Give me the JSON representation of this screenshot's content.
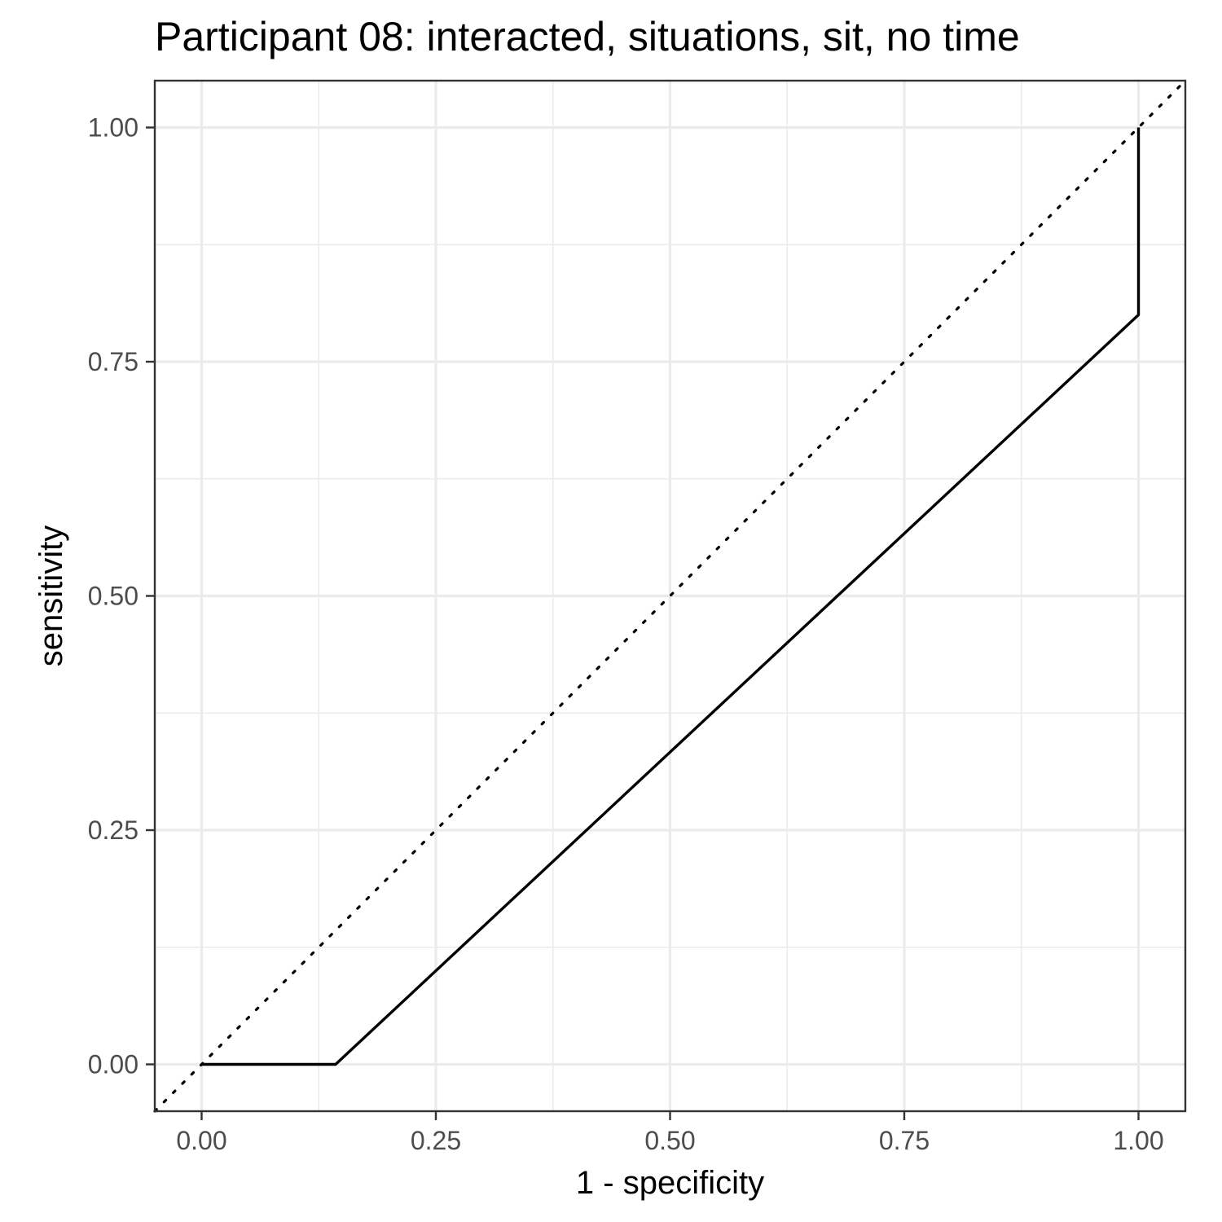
{
  "chart_data": {
    "type": "line",
    "title": "Participant 08: interacted, situations, sit, no time",
    "xlabel": "1 - specificity",
    "ylabel": "sensitivity",
    "xlim": [
      -0.05,
      1.05
    ],
    "ylim": [
      -0.05,
      1.05
    ],
    "x_ticks": [
      0,
      0.25,
      0.5,
      0.75,
      1
    ],
    "x_tick_labels": [
      "0.00",
      "0.25",
      "0.50",
      "0.75",
      "1.00"
    ],
    "y_ticks": [
      0,
      0.25,
      0.5,
      0.75,
      1
    ],
    "y_tick_labels": [
      "0.00",
      "0.25",
      "0.50",
      "0.75",
      "1.00"
    ],
    "grid": true,
    "series": [
      {
        "style": "solid",
        "color": "#000000",
        "points": [
          [
            0,
            0
          ],
          [
            0.143,
            0
          ],
          [
            1,
            0.8
          ],
          [
            1,
            1
          ]
        ]
      }
    ],
    "reference_line": {
      "style": "dotted",
      "color": "#000000",
      "slope": 1,
      "intercept": 0
    }
  }
}
